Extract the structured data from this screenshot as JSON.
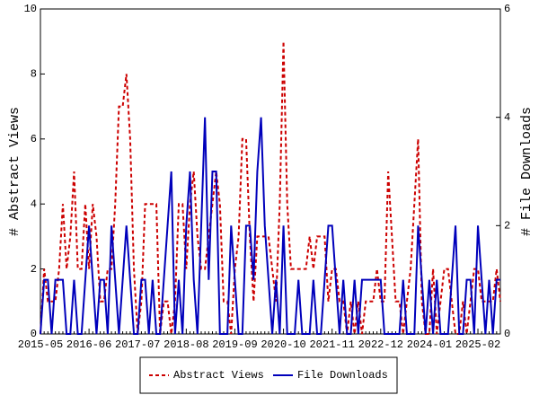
{
  "chart_data": {
    "type": "line",
    "categories": [
      "2015-05",
      null,
      null,
      null,
      null,
      null,
      null,
      null,
      null,
      null,
      null,
      null,
      null,
      "2016-06",
      null,
      null,
      null,
      null,
      null,
      null,
      null,
      null,
      null,
      null,
      null,
      null,
      "2017-07",
      null,
      null,
      null,
      null,
      null,
      null,
      null,
      null,
      null,
      null,
      null,
      null,
      "2018-08",
      null,
      null,
      null,
      null,
      null,
      null,
      null,
      null,
      null,
      null,
      null,
      null,
      "2019-09",
      null,
      null,
      null,
      null,
      null,
      null,
      null,
      null,
      null,
      null,
      null,
      null,
      "2020-10",
      null,
      null,
      null,
      null,
      null,
      null,
      null,
      null,
      null,
      null,
      null,
      null,
      "2021-11",
      null,
      null,
      null,
      null,
      null,
      null,
      null,
      null,
      null,
      null,
      null,
      null,
      "2022-12",
      null,
      null,
      null,
      null,
      null,
      null,
      null,
      null,
      null,
      null,
      null,
      null,
      "2024-01",
      null,
      null,
      null,
      null,
      null,
      null,
      null,
      null,
      null,
      null,
      null,
      null,
      "2025-02",
      null,
      null,
      null,
      null,
      null,
      null
    ],
    "ylabel": "# Abstract Views",
    "y2label": "# File Downloads",
    "ylim": [
      0,
      10
    ],
    "yticks": [
      0,
      2,
      4,
      6,
      8,
      10
    ],
    "y2lim": [
      0,
      6
    ],
    "y2ticks": [
      0,
      2,
      4,
      6
    ],
    "legend": "bottom",
    "series": [
      {
        "name": "Abstract Views",
        "color": "#cc0000",
        "dashed": true,
        "values": [
          0,
          2,
          1,
          1,
          1,
          2,
          4,
          2,
          3,
          5,
          2,
          2,
          4,
          2,
          4,
          3,
          1,
          1,
          2,
          2,
          4,
          7,
          7,
          8,
          6,
          2,
          0,
          1,
          4,
          4,
          4,
          4,
          0,
          1,
          1,
          0,
          1,
          4,
          4,
          2,
          4,
          5,
          3,
          2,
          2,
          3,
          4,
          5,
          4,
          1,
          1,
          0,
          2,
          3,
          6,
          6,
          3,
          1,
          3,
          3,
          3,
          3,
          2,
          1,
          4,
          9,
          4,
          2,
          2,
          2,
          2,
          2,
          3,
          2,
          3,
          3,
          3,
          1,
          2,
          2,
          1,
          1,
          0,
          1,
          0,
          1,
          0,
          1,
          1,
          1,
          2,
          1,
          1,
          5,
          3,
          1,
          1,
          0,
          1,
          2,
          4,
          6,
          1,
          0,
          0,
          2,
          0,
          1,
          2,
          2,
          1,
          0,
          0,
          1,
          0,
          1,
          2,
          2,
          1,
          1,
          1,
          1,
          2,
          1
        ]
      },
      {
        "name": "File Downloads",
        "color": "#0000bb",
        "axis": "y2",
        "dashed": false,
        "values": [
          0,
          1,
          1,
          0,
          1,
          1,
          1,
          0,
          0,
          1,
          0,
          0,
          1,
          2,
          1,
          0,
          1,
          1,
          0,
          2,
          1,
          0,
          1,
          2,
          1,
          0,
          0,
          1,
          1,
          0,
          1,
          0,
          0,
          1,
          2,
          3,
          0,
          1,
          0,
          2,
          3,
          1,
          0,
          2,
          4,
          1,
          3,
          3,
          0,
          0,
          0,
          2,
          1,
          0,
          0,
          2,
          2,
          1,
          3,
          4,
          2,
          1,
          0,
          1,
          0,
          2,
          0,
          0,
          0,
          1,
          0,
          0,
          0,
          1,
          0,
          0,
          1,
          2,
          2,
          1,
          0,
          1,
          0,
          0,
          1,
          0,
          1,
          1,
          1,
          1,
          1,
          1,
          0,
          0,
          0,
          0,
          0,
          1,
          0,
          0,
          0,
          2,
          1,
          0,
          1,
          0,
          1,
          0,
          0,
          0,
          1,
          2,
          0,
          0,
          1,
          1,
          0,
          2,
          1,
          0,
          1,
          0,
          1,
          1
        ]
      }
    ]
  }
}
